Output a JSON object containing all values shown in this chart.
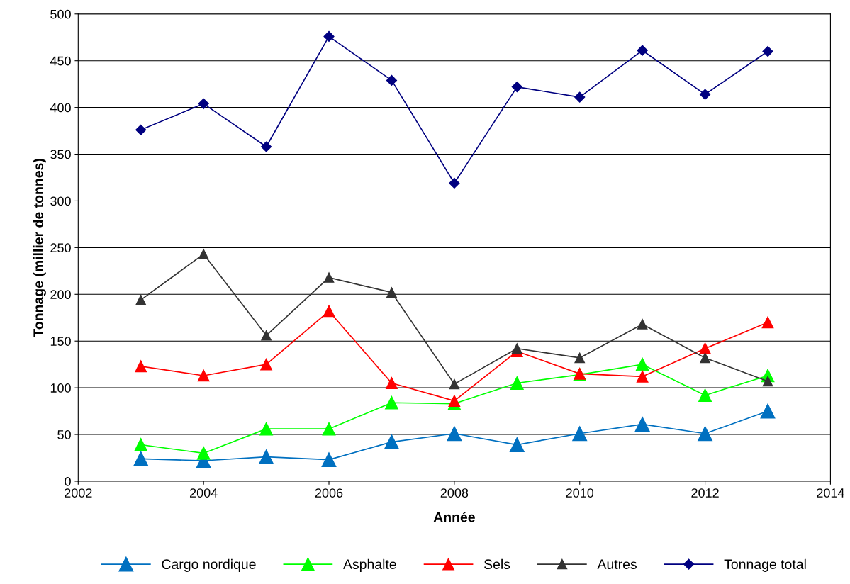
{
  "chart_data": {
    "type": "line",
    "xlabel": "Année",
    "ylabel": "Tonnage (millier de tonnes)",
    "x": [
      2003,
      2004,
      2005,
      2006,
      2007,
      2008,
      2009,
      2010,
      2011,
      2012,
      2013
    ],
    "series": [
      {
        "name": "Cargo nordique",
        "color": "#0070c0",
        "marker": "triangle",
        "values": [
          24,
          22,
          26,
          23,
          42,
          51,
          39,
          51,
          61,
          51,
          75
        ]
      },
      {
        "name": "Asphalte",
        "color": "#00ff00",
        "marker": "triangle",
        "values": [
          39,
          30,
          56,
          56,
          84,
          83,
          105,
          114,
          125,
          92,
          113
        ]
      },
      {
        "name": "Sels",
        "color": "#ff0000",
        "marker": "triangle",
        "values": [
          123,
          113,
          125,
          182,
          105,
          86,
          139,
          115,
          112,
          142,
          170
        ]
      },
      {
        "name": "Autres",
        "color": "#333333",
        "marker": "triangle",
        "values": [
          194,
          243,
          156,
          218,
          202,
          104,
          142,
          132,
          168,
          132,
          107
        ]
      },
      {
        "name": "Tonnage total",
        "color": "#000080",
        "marker": "diamond",
        "values": [
          376,
          404,
          358,
          476,
          429,
          319,
          422,
          411,
          461,
          414,
          460
        ]
      }
    ],
    "xlim": [
      2002,
      2014
    ],
    "xticks": [
      2002,
      2004,
      2006,
      2008,
      2010,
      2012,
      2014
    ],
    "ylim": [
      0,
      500
    ],
    "yticks": [
      0,
      50,
      100,
      150,
      200,
      250,
      300,
      350,
      400,
      450,
      500
    ],
    "grid": "y",
    "legend": "bottom"
  }
}
